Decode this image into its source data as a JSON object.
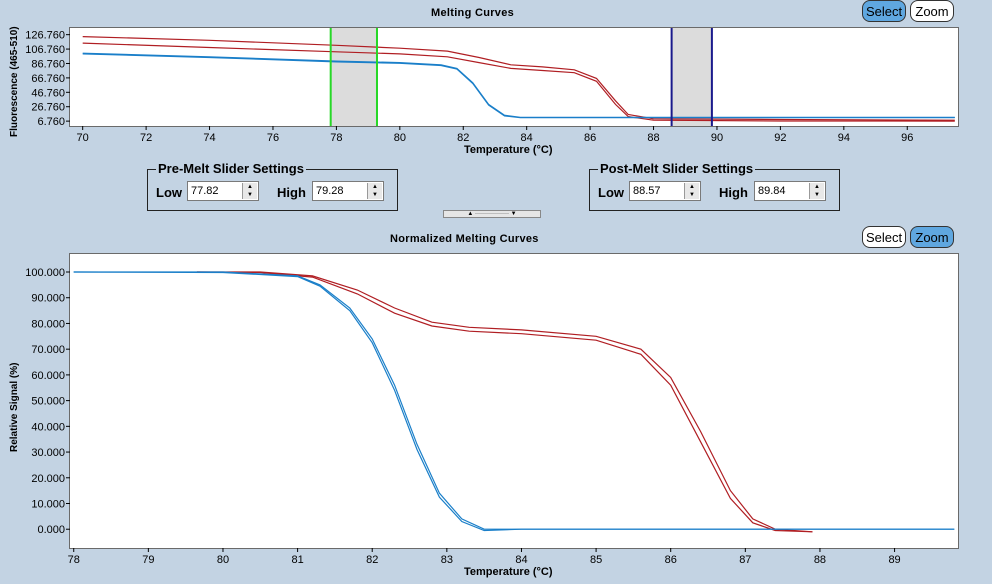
{
  "top": {
    "title": "Melting Curves",
    "select_label": "Select",
    "zoom_label": "Zoom",
    "ylabel": "Fluorescence (465-510)",
    "xlabel": "Temperature (°C)"
  },
  "premelt": {
    "legend": "Pre-Melt Slider Settings",
    "low_label": "Low",
    "low_value": "77.82",
    "high_label": "High",
    "high_value": "79.28"
  },
  "postmelt": {
    "legend": "Post-Melt Slider Settings",
    "low_label": "Low",
    "low_value": "88.57",
    "high_label": "High",
    "high_value": "89.84"
  },
  "bottom": {
    "title": "Normalized Melting Curves",
    "select_label": "Select",
    "zoom_label": "Zoom",
    "ylabel": "Relative Signal (%)",
    "xlabel": "Temperature (°C)"
  },
  "colors": {
    "red": "#b01e23",
    "blue": "#1a7fc9",
    "green": "#27d827",
    "navy": "#1a1a8c",
    "band": "#dcdcdc"
  },
  "chart_data": [
    {
      "type": "line",
      "title": "Melting Curves",
      "xlabel": "Temperature (°C)",
      "ylabel": "Fluorescence (465-510)",
      "xlim": [
        69.6,
        97.6
      ],
      "ylim": [
        0,
        136
      ],
      "xticks": [
        70,
        72,
        74,
        76,
        78,
        80,
        82,
        84,
        86,
        88,
        90,
        92,
        94,
        96
      ],
      "yticks": [
        6.76,
        26.76,
        46.76,
        66.76,
        86.76,
        106.76,
        126.76
      ],
      "ytick_labels": [
        "6.760",
        "26.760",
        "46.760",
        "66.760",
        "86.760",
        "106.760",
        "126.760"
      ],
      "regions": [
        {
          "from": 77.82,
          "to": 79.28,
          "color": "green"
        },
        {
          "from": 88.57,
          "to": 89.84,
          "color": "navy"
        }
      ],
      "series": [
        {
          "color": "red",
          "x": [
            70,
            74,
            78,
            80,
            81.5,
            82.5,
            83.5,
            84.5,
            85.5,
            86.2,
            86.8,
            87.2,
            88,
            92,
            97.5
          ],
          "y": [
            124,
            119,
            112,
            108,
            104,
            95,
            85,
            82,
            78,
            66,
            35,
            16,
            10,
            9,
            8
          ]
        },
        {
          "color": "red",
          "x": [
            70,
            74,
            78,
            80,
            81.5,
            82.5,
            83.5,
            84.5,
            85.5,
            86.2,
            86.8,
            87.2,
            88,
            92,
            97.5
          ],
          "y": [
            115,
            109,
            103,
            100,
            96,
            88,
            80,
            77,
            74,
            62,
            30,
            13,
            8,
            7,
            6.8
          ]
        },
        {
          "color": "blue",
          "x": [
            70,
            74,
            78,
            80,
            81.3,
            81.8,
            82.3,
            82.8,
            83.3,
            83.8,
            85,
            90,
            97.5
          ],
          "y": [
            101,
            96,
            90,
            88,
            85,
            80,
            60,
            30,
            15,
            12,
            12,
            12,
            12
          ]
        },
        {
          "color": "blue",
          "x": [
            70,
            74,
            78,
            80,
            81.3,
            81.8,
            82.3,
            82.8,
            83.3,
            83.8,
            85,
            90,
            97.5
          ],
          "y": [
            100,
            95,
            89,
            87,
            84,
            79,
            59,
            29,
            14,
            11.5,
            11.5,
            11.5,
            11.5
          ]
        }
      ]
    },
    {
      "type": "line",
      "title": "Normalized Melting Curves",
      "xlabel": "Temperature (°C)",
      "ylabel": "Relative Signal (%)",
      "xlim": [
        77.95,
        89.85
      ],
      "ylim": [
        -7.3,
        107
      ],
      "xticks": [
        78,
        79,
        80,
        81,
        82,
        83,
        84,
        85,
        86,
        87,
        88,
        89
      ],
      "yticks": [
        0,
        10,
        20,
        30,
        40,
        50,
        60,
        70,
        80,
        90,
        100
      ],
      "ytick_labels": [
        "0.000",
        "10.000",
        "20.000",
        "30.000",
        "40.000",
        "50.000",
        "60.000",
        "70.000",
        "80.000",
        "90.000",
        "100.000"
      ],
      "series": [
        {
          "color": "red",
          "x": [
            79.65,
            80.5,
            81.2,
            81.8,
            82.3,
            82.8,
            83.3,
            84,
            85,
            85.6,
            86,
            86.4,
            86.8,
            87.1,
            87.4,
            87.9
          ],
          "y": [
            100,
            100,
            98.5,
            93,
            86,
            80.5,
            78.5,
            77.5,
            75,
            70,
            59,
            38,
            15,
            4,
            0,
            -1
          ]
        },
        {
          "color": "red",
          "x": [
            79.65,
            80.5,
            81.2,
            81.8,
            82.3,
            82.8,
            83.3,
            84,
            85,
            85.6,
            86,
            86.4,
            86.8,
            87.1,
            87.4,
            87.9
          ],
          "y": [
            100,
            99.8,
            98,
            91.5,
            84,
            79,
            77,
            76,
            73.5,
            68,
            56,
            34,
            12,
            2.5,
            -0.5,
            -1
          ]
        },
        {
          "color": "blue",
          "x": [
            78,
            80,
            81,
            81.3,
            81.7,
            82,
            82.3,
            82.6,
            82.9,
            83.2,
            83.5,
            84,
            86,
            89.8
          ],
          "y": [
            100,
            100,
            98.5,
            95,
            86,
            74,
            56,
            33,
            14,
            4,
            0,
            0,
            0,
            0
          ]
        },
        {
          "color": "blue",
          "x": [
            78,
            80,
            81,
            81.3,
            81.7,
            82,
            82.3,
            82.6,
            82.9,
            83.2,
            83.5,
            84,
            86,
            89.8
          ],
          "y": [
            100,
            99.8,
            98.2,
            94.5,
            85,
            72.5,
            54,
            31,
            12.5,
            3,
            -0.5,
            0,
            0,
            0
          ]
        }
      ]
    }
  ]
}
